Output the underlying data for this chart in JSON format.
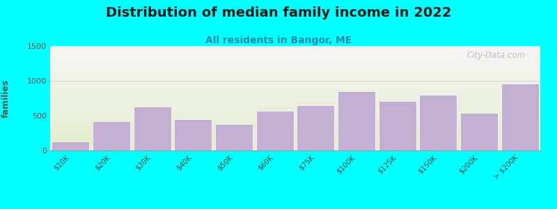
{
  "title": "Distribution of median family income in 2022",
  "subtitle": "All residents in Bangor, ME",
  "ylabel": "families",
  "categories": [
    "$10K",
    "$20K",
    "$30K",
    "$40K",
    "$50K",
    "$60K",
    "$75K",
    "$100K",
    "$125K",
    "$150K",
    "$200K",
    "> $200K"
  ],
  "values": [
    130,
    420,
    630,
    450,
    380,
    575,
    650,
    850,
    710,
    800,
    540,
    960
  ],
  "bar_color": "#c4afd4",
  "background_color": "#00ffff",
  "plot_bg_top": "#f5f5f5",
  "plot_bg_bottom": "#e4edcc",
  "ylim": [
    0,
    1500
  ],
  "yticks": [
    0,
    500,
    1000,
    1500
  ],
  "title_fontsize": 14,
  "subtitle_fontsize": 10,
  "ylabel_fontsize": 9,
  "watermark": "City-Data.com"
}
